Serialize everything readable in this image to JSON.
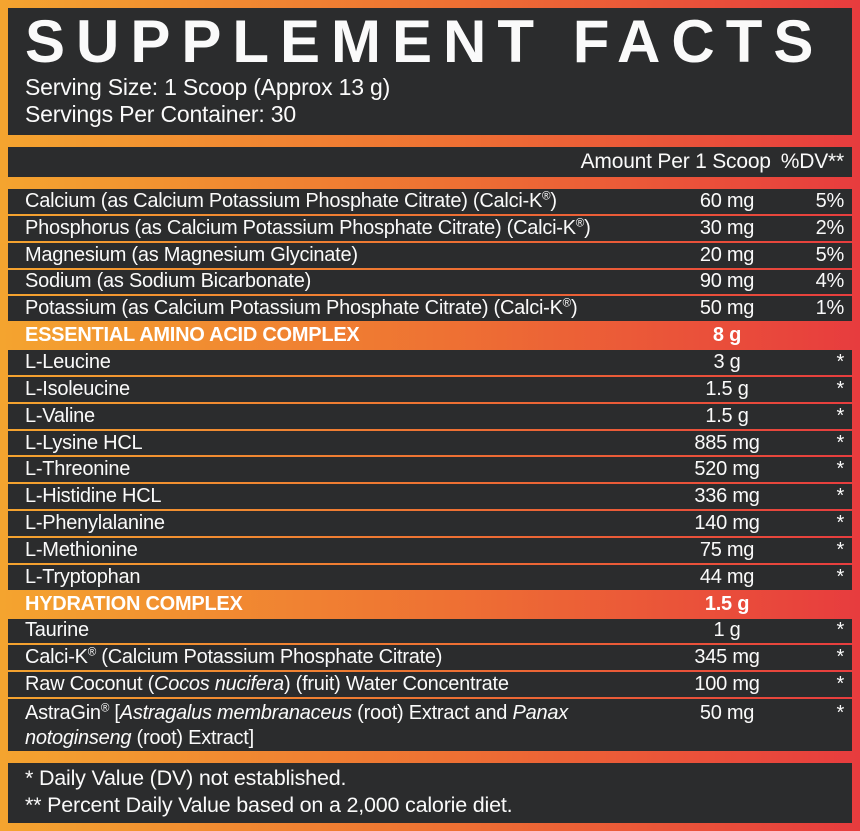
{
  "colors": {
    "orange": "#F4A42F",
    "mid": "#EE7133",
    "red": "#E73C3E",
    "panel": "#2B2C2D",
    "text": "#FAFAFA"
  },
  "header": {
    "title": "SUPPLEMENT FACTS",
    "serving_size": "Serving Size: 1 Scoop (Approx 13 g)",
    "servings_per_container": "Servings Per Container: 30"
  },
  "columns": {
    "amount": "Amount Per 1 Scoop",
    "dv": "%DV**"
  },
  "table": {
    "rows": [
      {
        "type": "item",
        "name": [
          {
            "t": "Calcium (as Calcium Potassium Phosphate Citrate) (Calci-K"
          },
          {
            "t": "®",
            "sup": true
          },
          {
            "t": ")"
          }
        ],
        "amount": "60 mg",
        "dv": "5%"
      },
      {
        "type": "item",
        "name": [
          {
            "t": "Phosphorus (as Calcium Potassium Phosphate Citrate) (Calci-K"
          },
          {
            "t": "®",
            "sup": true
          },
          {
            "t": ")"
          }
        ],
        "amount": "30 mg",
        "dv": "2%"
      },
      {
        "type": "item",
        "name": [
          {
            "t": "Magnesium (as Magnesium Glycinate)"
          }
        ],
        "amount": "20 mg",
        "dv": "5%"
      },
      {
        "type": "item",
        "name": [
          {
            "t": "Sodium (as Sodium Bicarbonate)"
          }
        ],
        "amount": "90 mg",
        "dv": "4%"
      },
      {
        "type": "item",
        "name": [
          {
            "t": "Potassium (as Calcium Potassium Phosphate Citrate) (Calci-K"
          },
          {
            "t": "®",
            "sup": true
          },
          {
            "t": ")"
          }
        ],
        "amount": "50 mg",
        "dv": "1%"
      },
      {
        "type": "section",
        "name": [
          {
            "t": "ESSENTIAL AMINO ACID COMPLEX"
          }
        ],
        "amount": "8 g",
        "dv": ""
      },
      {
        "type": "item",
        "name": [
          {
            "t": "L-Leucine"
          }
        ],
        "amount": "3 g",
        "dv": "*"
      },
      {
        "type": "item",
        "name": [
          {
            "t": "L-Isoleucine"
          }
        ],
        "amount": "1.5 g",
        "dv": "*"
      },
      {
        "type": "item",
        "name": [
          {
            "t": "L-Valine"
          }
        ],
        "amount": "1.5 g",
        "dv": "*"
      },
      {
        "type": "item",
        "name": [
          {
            "t": "L-Lysine HCL"
          }
        ],
        "amount": "885 mg",
        "dv": "*"
      },
      {
        "type": "item",
        "name": [
          {
            "t": "L-Threonine"
          }
        ],
        "amount": "520 mg",
        "dv": "*"
      },
      {
        "type": "item",
        "name": [
          {
            "t": "L-Histidine HCL"
          }
        ],
        "amount": "336 mg",
        "dv": "*"
      },
      {
        "type": "item",
        "name": [
          {
            "t": "L-Phenylalanine"
          }
        ],
        "amount": "140 mg",
        "dv": "*"
      },
      {
        "type": "item",
        "name": [
          {
            "t": "L-Methionine"
          }
        ],
        "amount": "75 mg",
        "dv": "*"
      },
      {
        "type": "item",
        "name": [
          {
            "t": "L-Tryptophan"
          }
        ],
        "amount": "44 mg",
        "dv": "*"
      },
      {
        "type": "section",
        "name": [
          {
            "t": "HYDRATION COMPLEX"
          }
        ],
        "amount": "1.5 g",
        "dv": ""
      },
      {
        "type": "item",
        "name": [
          {
            "t": "Taurine"
          }
        ],
        "amount": "1 g",
        "dv": "*"
      },
      {
        "type": "item",
        "name": [
          {
            "t": "Calci-K"
          },
          {
            "t": "®",
            "sup": true
          },
          {
            "t": " (Calcium Potassium Phosphate Citrate)"
          }
        ],
        "amount": "345 mg",
        "dv": "*"
      },
      {
        "type": "item",
        "name": [
          {
            "t": "Raw Coconut ("
          },
          {
            "t": "Cocos nucifera",
            "i": true
          },
          {
            "t": ") (fruit) Water Concentrate"
          }
        ],
        "amount": "100 mg",
        "dv": "*"
      },
      {
        "type": "item",
        "tall": true,
        "name": [
          {
            "t": "AstraGin"
          },
          {
            "t": "®",
            "sup": true
          },
          {
            "t": " ["
          },
          {
            "t": "Astragalus membranaceus",
            "i": true
          },
          {
            "t": " (root) Extract and "
          },
          {
            "t": "Panax notoginseng",
            "i": true
          },
          {
            "t": " (root) Extract]"
          }
        ],
        "amount": "50 mg",
        "dv": "*"
      }
    ]
  },
  "footnotes": {
    "line1": "* Daily Value (DV) not established.",
    "line2": "** Percent Daily Value based on a 2,000 calorie diet."
  }
}
